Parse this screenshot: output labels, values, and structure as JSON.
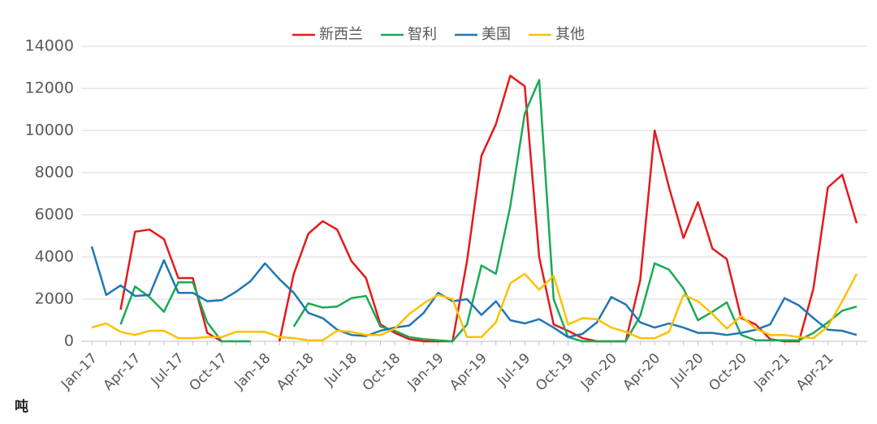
{
  "chart_data": {
    "type": "line",
    "y_unit_label": "吨",
    "categories": [
      "Jan-17",
      null,
      null,
      "Apr-17",
      null,
      null,
      "Jul-17",
      null,
      null,
      "Oct-17",
      null,
      null,
      "Jan-18",
      null,
      null,
      "Apr-18",
      null,
      null,
      "Jul-18",
      null,
      null,
      "Oct-18",
      null,
      null,
      "Jan-19",
      null,
      null,
      "Apr-19",
      null,
      null,
      "Jul-19",
      null,
      null,
      "Oct-19",
      null,
      null,
      "Jan-20",
      null,
      null,
      "Apr-20",
      null,
      null,
      "Jul-20",
      null,
      null,
      "Oct-20",
      null,
      null,
      "Jan-21",
      null,
      null,
      "Apr-21",
      null,
      null
    ],
    "series": [
      {
        "name": "新西兰",
        "color": "#e41a1c",
        "values": [
          null,
          null,
          1500,
          5200,
          5300,
          4850,
          3000,
          3000,
          400,
          0,
          null,
          null,
          null,
          0,
          3200,
          5100,
          5700,
          5300,
          3800,
          3000,
          800,
          400,
          100,
          0,
          0,
          0,
          3800,
          8800,
          10300,
          12600,
          12100,
          4000,
          800,
          500,
          150,
          0,
          0,
          0,
          2900,
          10000,
          7300,
          4900,
          6600,
          4400,
          3900,
          1100,
          800,
          100,
          0,
          0,
          2500,
          7300,
          7900,
          5600
        ]
      },
      {
        "name": "智利",
        "color": "#1aaa55",
        "values": [
          null,
          null,
          800,
          2600,
          2100,
          1400,
          2800,
          2800,
          900,
          0,
          0,
          0,
          null,
          null,
          700,
          1800,
          1600,
          1650,
          2050,
          2150,
          700,
          500,
          200,
          100,
          50,
          0,
          800,
          3600,
          3200,
          6400,
          10800,
          12400,
          2000,
          200,
          0,
          0,
          0,
          0,
          1200,
          3700,
          3400,
          2500,
          1000,
          1400,
          1850,
          300,
          50,
          50,
          50,
          50,
          400,
          900,
          1450,
          1650
        ]
      },
      {
        "name": "美国",
        "color": "#1f77b4",
        "values": [
          4500,
          2200,
          2650,
          2150,
          2200,
          3850,
          2300,
          2300,
          1900,
          1950,
          2350,
          2850,
          3700,
          2950,
          2300,
          1350,
          1100,
          550,
          300,
          250,
          500,
          650,
          750,
          1350,
          2300,
          1900,
          2000,
          1250,
          1900,
          1000,
          850,
          1050,
          650,
          200,
          350,
          900,
          2100,
          1750,
          900,
          650,
          850,
          650,
          400,
          400,
          300,
          400,
          550,
          800,
          2050,
          1700,
          1100,
          550,
          500,
          300
        ]
      },
      {
        "name": "其他",
        "color": "#ffc000",
        "values": [
          650,
          850,
          450,
          300,
          500,
          500,
          150,
          150,
          200,
          200,
          450,
          450,
          450,
          200,
          150,
          50,
          50,
          500,
          450,
          300,
          300,
          600,
          1300,
          1800,
          2200,
          2000,
          200,
          200,
          900,
          2750,
          3200,
          2450,
          3100,
          800,
          1100,
          1050,
          650,
          450,
          150,
          150,
          450,
          2200,
          1900,
          1300,
          600,
          1200,
          600,
          300,
          300,
          200,
          150,
          700,
          1900,
          3200
        ]
      }
    ],
    "ylim": [
      0,
      14000
    ],
    "yticks": [
      0,
      2000,
      4000,
      6000,
      8000,
      10000,
      12000,
      14000
    ],
    "grid": true,
    "legend": "top"
  }
}
